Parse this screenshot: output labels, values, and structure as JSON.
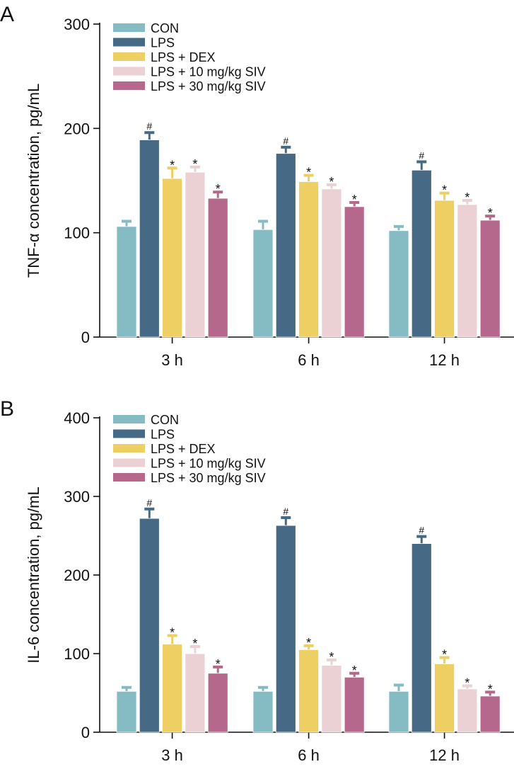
{
  "chart_data": [
    {
      "panel": "A",
      "type": "bar",
      "ylabel": "TNF-α concentration, pg/mL",
      "xlabel": "",
      "ylim": [
        0,
        300
      ],
      "yticks": [
        0,
        100,
        200,
        300
      ],
      "categories": [
        "3 h",
        "6 h",
        "12 h"
      ],
      "legend_position": "top-left",
      "series": [
        {
          "name": "CON",
          "color": "#85bcc4",
          "values": [
            106,
            103,
            102
          ],
          "errors": [
            5,
            8,
            4
          ],
          "marks": [
            "",
            "",
            ""
          ]
        },
        {
          "name": "LPS",
          "color": "#466a85",
          "values": [
            189,
            176,
            160
          ],
          "errors": [
            7,
            6,
            8
          ],
          "marks": [
            "#",
            "#",
            "#"
          ]
        },
        {
          "name": "LPS + DEX",
          "color": "#edcf63",
          "values": [
            152,
            149,
            131
          ],
          "errors": [
            10,
            6,
            7
          ],
          "marks": [
            "*",
            "*",
            "*"
          ]
        },
        {
          "name": "LPS + 10 mg/kg SIV",
          "color": "#ebd1d4",
          "values": [
            158,
            142,
            127
          ],
          "errors": [
            5,
            4,
            4
          ],
          "marks": [
            "*",
            "*",
            "*"
          ]
        },
        {
          "name": "LPS + 30 mg/kg SIV",
          "color": "#b5688c",
          "values": [
            133,
            125,
            112
          ],
          "errors": [
            6,
            4,
            4
          ],
          "marks": [
            "*",
            "*",
            "*"
          ]
        }
      ]
    },
    {
      "panel": "B",
      "type": "bar",
      "ylabel": "IL-6 concentration, pg/mL",
      "xlabel": "",
      "ylim": [
        0,
        400
      ],
      "yticks": [
        0,
        100,
        200,
        300,
        400
      ],
      "categories": [
        "3 h",
        "6 h",
        "12 h"
      ],
      "legend_position": "top-left",
      "series": [
        {
          "name": "CON",
          "color": "#85bcc4",
          "values": [
            52,
            52,
            52
          ],
          "errors": [
            5,
            5,
            8
          ],
          "marks": [
            "",
            "",
            ""
          ]
        },
        {
          "name": "LPS",
          "color": "#466a85",
          "values": [
            272,
            263,
            240
          ],
          "errors": [
            12,
            10,
            9
          ],
          "marks": [
            "#",
            "#",
            "#"
          ]
        },
        {
          "name": "LPS + DEX",
          "color": "#edcf63",
          "values": [
            112,
            105,
            87
          ],
          "errors": [
            11,
            5,
            8
          ],
          "marks": [
            "*",
            "*",
            "*"
          ]
        },
        {
          "name": "LPS + 10 mg/kg SIV",
          "color": "#ebd1d4",
          "values": [
            100,
            85,
            55
          ],
          "errors": [
            9,
            7,
            4
          ],
          "marks": [
            "*",
            "*",
            "*"
          ]
        },
        {
          "name": "LPS + 30 mg/kg SIV",
          "color": "#b5688c",
          "values": [
            75,
            70,
            46
          ],
          "errors": [
            8,
            5,
            5
          ],
          "marks": [
            "*",
            "*",
            "*"
          ]
        }
      ]
    }
  ]
}
